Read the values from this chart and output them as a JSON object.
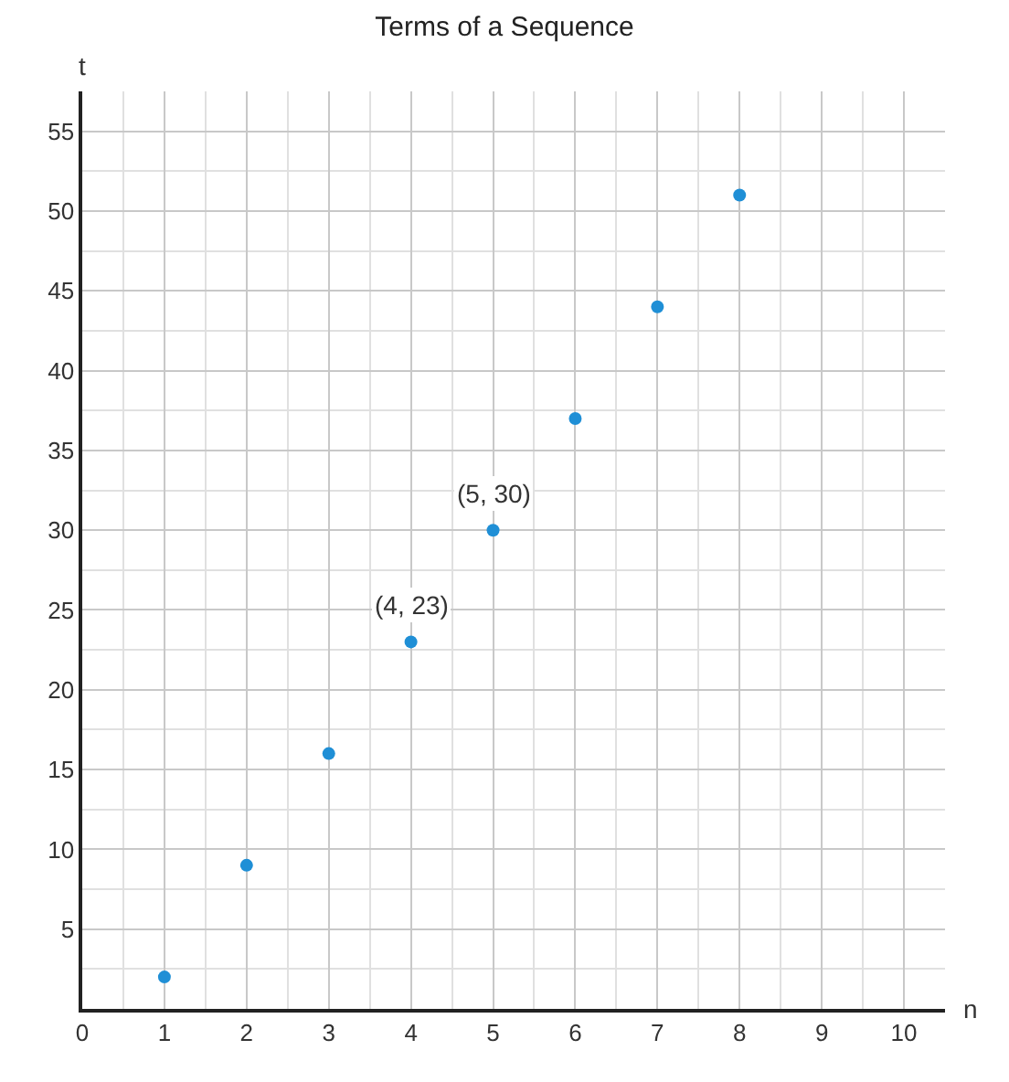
{
  "chart_data": {
    "type": "scatter",
    "title": "Terms of a Sequence",
    "xlabel": "n",
    "ylabel": "t",
    "x": [
      1,
      2,
      3,
      4,
      5,
      6,
      7,
      8
    ],
    "series": [
      {
        "color": "#1f8fd6",
        "values": [
          2,
          9,
          16,
          23,
          30,
          37,
          44,
          51
        ]
      }
    ],
    "marker": "circle",
    "grid": true,
    "xlim": [
      0,
      10.5
    ],
    "ylim": [
      0,
      57.5
    ],
    "xticks": [
      0,
      1,
      2,
      3,
      4,
      5,
      6,
      7,
      8,
      9,
      10
    ],
    "yticks": [
      5,
      10,
      15,
      20,
      25,
      30,
      35,
      40,
      45,
      50,
      55
    ],
    "annotations": [
      {
        "text": "(4, 23)",
        "x": 4,
        "y": 23
      },
      {
        "text": "(5, 30)",
        "x": 5,
        "y": 30
      }
    ]
  }
}
